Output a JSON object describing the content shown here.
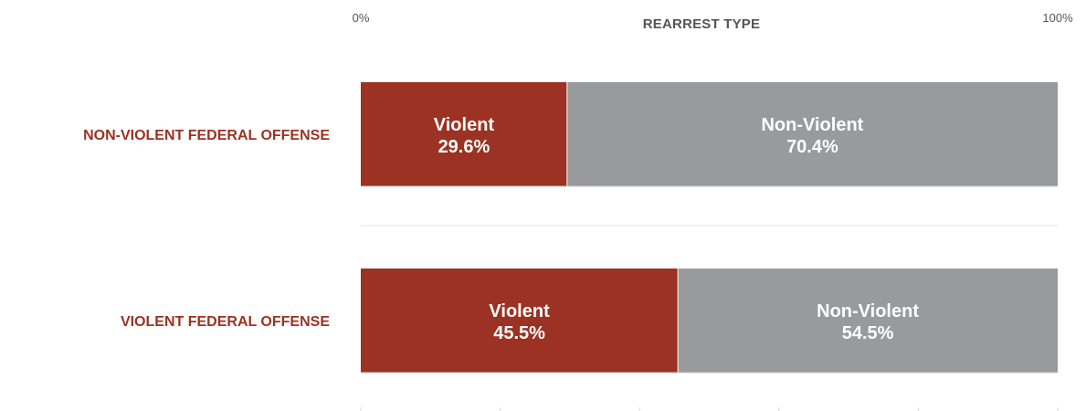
{
  "chart_data": {
    "type": "bar",
    "orientation": "horizontal",
    "stacked": true,
    "title": "REARREST TYPE",
    "x_min_label": "0%",
    "x_max_label": "100%",
    "xlim": [
      0,
      100
    ],
    "categories": [
      "NON-VIOLENT FEDERAL OFFENSE",
      "VIOLENT FEDERAL OFFENSE"
    ],
    "series": [
      {
        "name": "Violent",
        "values": [
          29.6,
          45.5
        ],
        "labels": [
          "29.6%",
          "45.5%"
        ],
        "color": "#9b3223"
      },
      {
        "name": "Non-Violent",
        "values": [
          70.4,
          54.5
        ],
        "labels": [
          "70.4%",
          "54.5%"
        ],
        "color": "#999a9c"
      }
    ],
    "category_label_color": "#9b3223",
    "grid": false
  }
}
